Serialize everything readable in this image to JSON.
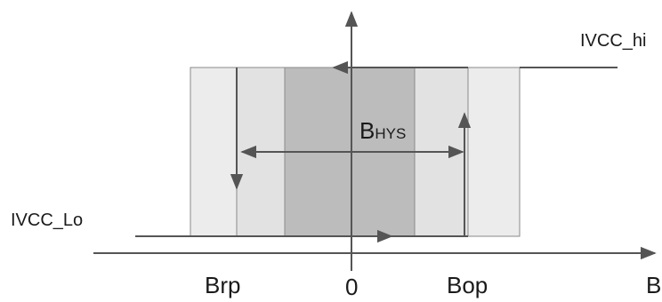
{
  "labels": {
    "ivcc_hi": "IVCC_hi",
    "ivcc_lo": "IVCC_Lo",
    "bhys_main": "B",
    "bhys_sub": "HYS",
    "brp": "Brp",
    "zero": "0",
    "bop": "Bop",
    "b_axis": "B"
  },
  "colors": {
    "outer_band": "#ececec",
    "middle_band": "#e2e2e2",
    "inner_band": "#bcbcbc",
    "band_border": "#8a8a8a",
    "lines": "#555555"
  }
}
